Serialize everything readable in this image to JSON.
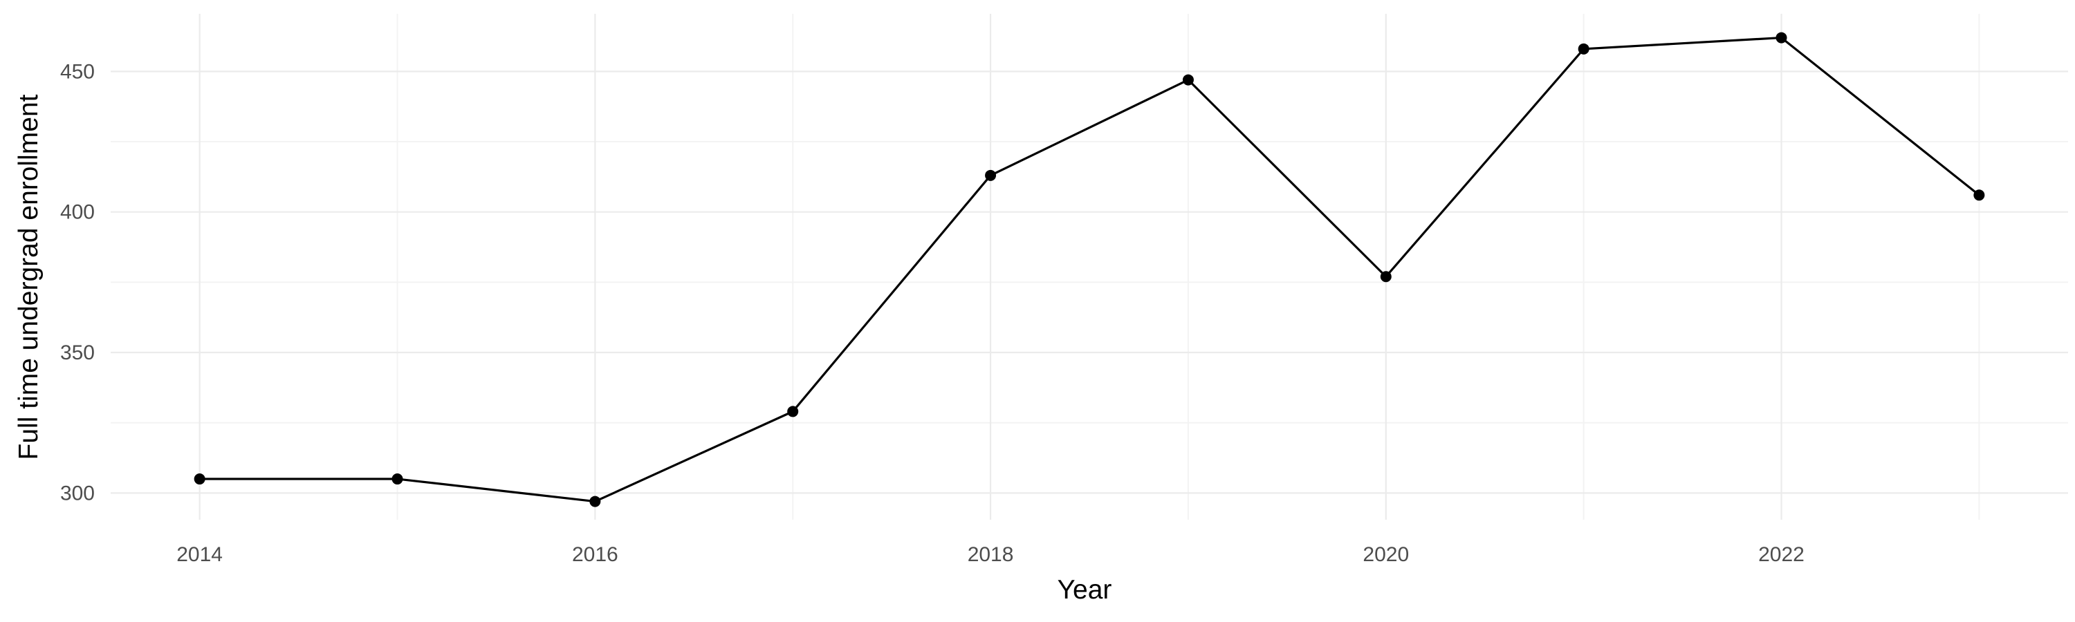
{
  "chart_data": {
    "type": "line",
    "title": "",
    "xlabel": "Year",
    "ylabel": "Full time undergrad enrollment",
    "x": [
      2014,
      2015,
      2016,
      2017,
      2018,
      2019,
      2020,
      2021,
      2022,
      2023
    ],
    "series": [
      {
        "values": [
          305,
          305,
          297,
          329,
          413,
          447,
          377,
          458,
          462,
          406
        ]
      }
    ],
    "xlim": [
      2013.55,
      2023.45
    ],
    "ylim": [
      290.5,
      470.5
    ],
    "x_ticks": [
      2014,
      2016,
      2018,
      2020,
      2022
    ],
    "x_tick_labels": [
      "2014",
      "2016",
      "2018",
      "2020",
      "2022"
    ],
    "y_ticks": [
      300,
      350,
      400,
      450
    ],
    "y_tick_labels": [
      "300",
      "350",
      "400",
      "450"
    ],
    "grid": true,
    "legend": "none",
    "colors": {
      "line": "#000000",
      "points": "#000000",
      "grid": "#ebebeb",
      "background": "#ffffff"
    }
  }
}
